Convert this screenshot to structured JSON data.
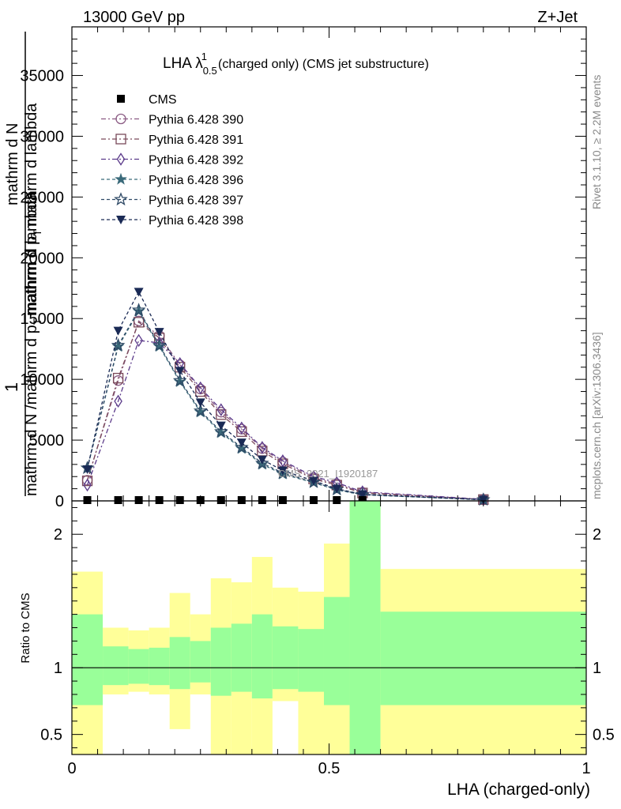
{
  "header": {
    "left": "13000 GeV pp",
    "right": "Z+Jet"
  },
  "side": {
    "rivet": "Rivet 3.1.10, ≥ 2.2M events",
    "mcplots": "mcplots.cern.ch [arXiv:1306.3436]"
  },
  "watermark": "CMS_2021_I1920187",
  "chart_data": [
    {
      "type": "line",
      "title": "LHA λ",
      "title_sup": "1",
      "title_sub": "0.5",
      "title_rest": "(charged only) (CMS jet substructure)",
      "ylabel_num": "1",
      "ylabel_den": "mathrm d N /mathrm d p_T mathrm d η",
      "ylabel_num2": "mathrm d²N",
      "ylabel_den2": "mathrm d p_T mathrm d lambda",
      "ylabel_line1": "mathrm d N /mathrm d p",
      "ylabel_line1_sub": "T",
      "ylabel_line1_rest": "mathrm d lambda",
      "ylabel_line2": "mathrm d N",
      "ylabel_line3": "mathrm d p",
      "ylabel_line3_sub": "T",
      "ylabel_line3_rest": "mathrm d lambda",
      "xlim": [
        0,
        1
      ],
      "ylim": [
        0,
        39000
      ],
      "yticks": [
        0,
        5000,
        10000,
        15000,
        20000,
        25000,
        30000,
        35000
      ],
      "yticklabels": [
        "0",
        "5000",
        "10000",
        "15000",
        "20000",
        "25000",
        "30000",
        "35000"
      ],
      "x": [
        0.03,
        0.09,
        0.13,
        0.17,
        0.21,
        0.25,
        0.29,
        0.33,
        0.37,
        0.41,
        0.47,
        0.515,
        0.565,
        0.8
      ],
      "data": {
        "name": "CMS",
        "values": [
          0,
          0,
          0,
          0,
          0,
          0,
          0,
          0,
          0,
          0,
          0,
          0,
          0,
          0
        ]
      },
      "series": [
        {
          "name": "Pythia 6.428 390",
          "color": "#8a5a83",
          "marker": "circle",
          "dash": "6,3,2,3",
          "values": [
            1700,
            9900,
            14800,
            13600,
            11200,
            9200,
            7300,
            5900,
            4300,
            3200,
            1900,
            1400,
            700,
            120
          ]
        },
        {
          "name": "Pythia 6.428 391",
          "color": "#7a4a5a",
          "marker": "square",
          "dash": "6,3,2,3",
          "values": [
            1650,
            10100,
            14700,
            13400,
            11000,
            9000,
            7100,
            5700,
            4100,
            3050,
            1800,
            1300,
            650,
            110
          ]
        },
        {
          "name": "Pythia 6.428 392",
          "color": "#5b3a8a",
          "marker": "diamond",
          "dash": "6,3,2,3",
          "values": [
            1300,
            8200,
            13200,
            13000,
            11300,
            9300,
            7500,
            6000,
            4400,
            3300,
            2000,
            1500,
            750,
            130
          ]
        },
        {
          "name": "Pythia 6.428 396",
          "color": "#3a6a7a",
          "marker": "star4",
          "dash": "4,3",
          "values": [
            2700,
            12700,
            15600,
            12700,
            9800,
            7300,
            5600,
            4300,
            3000,
            2200,
            1500,
            900,
            500,
            90
          ]
        },
        {
          "name": "Pythia 6.428 397",
          "color": "#2f4a66",
          "marker": "star5",
          "dash": "4,3",
          "values": [
            2700,
            12800,
            15700,
            12800,
            9900,
            7400,
            5700,
            4400,
            3100,
            2300,
            1550,
            950,
            520,
            95
          ]
        },
        {
          "name": "Pythia 6.428 398",
          "color": "#1a2a55",
          "marker": "tri-down",
          "dash": "4,3",
          "values": [
            2600,
            14000,
            17200,
            13900,
            10700,
            8100,
            6200,
            4800,
            3400,
            2500,
            1650,
            1000,
            540,
            100
          ]
        }
      ]
    },
    {
      "type": "area",
      "ylabel": "Ratio to CMS",
      "xlabel": "LHA (charged-only)",
      "xlim": [
        0,
        1
      ],
      "ylim": [
        0.35,
        2.25
      ],
      "xticks": [
        0,
        0.5,
        1
      ],
      "xticklabels": [
        "0",
        "0.5",
        "1"
      ],
      "yticks": [
        0.5,
        1,
        2
      ],
      "yticklabels": [
        "0.5",
        "1",
        "2"
      ],
      "colors": {
        "inner": "#99ff99",
        "outer": "#ffff99"
      },
      "bins": [
        {
          "lo": 0.0,
          "hi": 0.06,
          "inner": [
            0.72,
            1.4
          ],
          "outer": [
            0.35,
            1.72
          ]
        },
        {
          "lo": 0.06,
          "hi": 0.11,
          "inner": [
            0.87,
            1.16
          ],
          "outer": [
            0.8,
            1.3
          ]
        },
        {
          "lo": 0.11,
          "hi": 0.15,
          "inner": [
            0.88,
            1.14
          ],
          "outer": [
            0.82,
            1.28
          ]
        },
        {
          "lo": 0.15,
          "hi": 0.19,
          "inner": [
            0.87,
            1.15
          ],
          "outer": [
            0.8,
            1.3
          ]
        },
        {
          "lo": 0.19,
          "hi": 0.23,
          "inner": [
            0.84,
            1.23
          ],
          "outer": [
            0.54,
            1.56
          ]
        },
        {
          "lo": 0.23,
          "hi": 0.27,
          "inner": [
            0.89,
            1.2
          ],
          "outer": [
            0.8,
            1.4
          ]
        },
        {
          "lo": 0.27,
          "hi": 0.31,
          "inner": [
            0.79,
            1.3
          ],
          "outer": [
            0.35,
            1.67
          ]
        },
        {
          "lo": 0.31,
          "hi": 0.35,
          "inner": [
            0.82,
            1.33
          ],
          "outer": [
            0.35,
            1.64
          ]
        },
        {
          "lo": 0.35,
          "hi": 0.39,
          "inner": [
            0.77,
            1.4
          ],
          "outer": [
            0.35,
            1.83
          ]
        },
        {
          "lo": 0.39,
          "hi": 0.44,
          "inner": [
            0.84,
            1.31
          ],
          "outer": [
            0.75,
            1.6
          ]
        },
        {
          "lo": 0.44,
          "hi": 0.49,
          "inner": [
            0.82,
            1.29
          ],
          "outer": [
            0.35,
            1.57
          ]
        },
        {
          "lo": 0.49,
          "hi": 0.54,
          "inner": [
            0.72,
            1.53
          ],
          "outer": [
            0.35,
            1.93
          ]
        },
        {
          "lo": 0.54,
          "hi": 0.6,
          "inner": [
            0.35,
            2.25
          ],
          "outer": [
            0.35,
            2.25
          ]
        },
        {
          "lo": 0.6,
          "hi": 1.0,
          "inner": [
            0.72,
            1.42
          ],
          "outer": [
            0.35,
            1.74
          ]
        }
      ]
    }
  ]
}
